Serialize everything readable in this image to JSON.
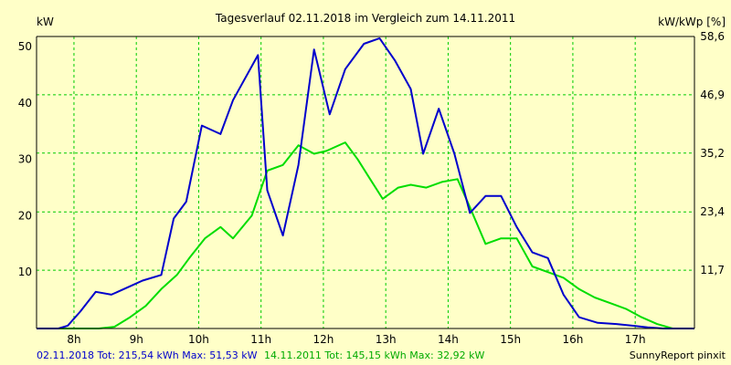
{
  "chart_data": {
    "type": "line",
    "title": "Tagesverlauf 02.11.2018 im Vergleich zum 14.11.2011",
    "ylabel_left": "kW",
    "ylabel_right": "kW/kWp [%]",
    "xlim": [
      7.4,
      17.95
    ],
    "ylim": [
      0,
      51.8
    ],
    "grid": true,
    "x_ticks": [
      8,
      9,
      10,
      11,
      12,
      13,
      14,
      15,
      16,
      17
    ],
    "x_tick_labels": [
      "8h",
      "9h",
      "10h",
      "11h",
      "12h",
      "13h",
      "14h",
      "15h",
      "16h",
      "17h"
    ],
    "y_ticks_left": [
      10,
      20,
      30,
      40,
      50
    ],
    "y_tick_labels_left": [
      "10",
      "20",
      "30",
      "40",
      "50"
    ],
    "y_ticks_right": [
      0,
      11.7,
      23.4,
      35.2,
      46.9,
      58.6
    ],
    "y_tick_labels_right": [
      "",
      "11,7",
      "23,4",
      "35,2",
      "46,9",
      "58,6"
    ],
    "y_right_max": 58.6,
    "series": [
      {
        "name": "02.11.2018",
        "color": "#0000cc",
        "x": [
          7.4,
          7.5,
          7.75,
          7.9,
          8.1,
          8.35,
          8.6,
          8.9,
          9.1,
          9.4,
          9.6,
          9.8,
          10.05,
          10.35,
          10.55,
          10.95,
          11.1,
          11.35,
          11.6,
          11.85,
          12.1,
          12.35,
          12.65,
          12.9,
          13.15,
          13.4,
          13.6,
          13.85,
          14.1,
          14.35,
          14.6,
          14.85,
          15.1,
          15.35,
          15.6,
          15.85,
          16.1,
          16.4,
          16.7,
          16.95,
          17.2,
          17.45,
          17.7,
          17.95
        ],
        "y": [
          0,
          0,
          0,
          0.5,
          3,
          6.5,
          6,
          7.5,
          8.5,
          9.5,
          19.5,
          22.5,
          36,
          34.5,
          40.5,
          48.5,
          24.5,
          16.5,
          29,
          49.5,
          38,
          46,
          50.5,
          51.5,
          47.5,
          42.5,
          31,
          39,
          31,
          20.5,
          23.5,
          23.5,
          18,
          13.5,
          12.5,
          6,
          2,
          1,
          0.8,
          0.5,
          0.2,
          0,
          0,
          0
        ]
      },
      {
        "name": "14.11.2011",
        "color": "#00dd00",
        "x": [
          7.4,
          8.4,
          8.65,
          8.9,
          9.15,
          9.4,
          9.65,
          9.85,
          10.1,
          10.35,
          10.55,
          10.85,
          11.1,
          11.35,
          11.6,
          11.85,
          12.05,
          12.35,
          12.55,
          12.75,
          12.95,
          13.2,
          13.4,
          13.65,
          13.9,
          14.15,
          14.35,
          14.6,
          14.85,
          15.1,
          15.35,
          15.6,
          15.85,
          16.1,
          16.35,
          16.6,
          16.85,
          17.1,
          17.35,
          17.6,
          17.95
        ],
        "y": [
          0,
          0,
          0.3,
          2,
          4,
          7,
          9.5,
          12.5,
          16,
          18,
          16,
          20,
          28,
          29,
          32.5,
          31,
          31.5,
          33,
          30,
          26.5,
          23,
          25,
          25.5,
          25,
          26,
          26.5,
          21.5,
          15,
          16,
          16,
          11,
          10,
          9,
          7,
          5.5,
          4.5,
          3.5,
          2,
          0.8,
          0,
          0
        ]
      }
    ],
    "footer_series1_text": "02.11.2018 Tot: 215,54 kWh Max: 51,53 kW",
    "footer_series2_text": "14.11.2011 Tot: 145,15 kWh Max: 32,92 kW",
    "footer_credit": "SunnyReport pinxit"
  }
}
